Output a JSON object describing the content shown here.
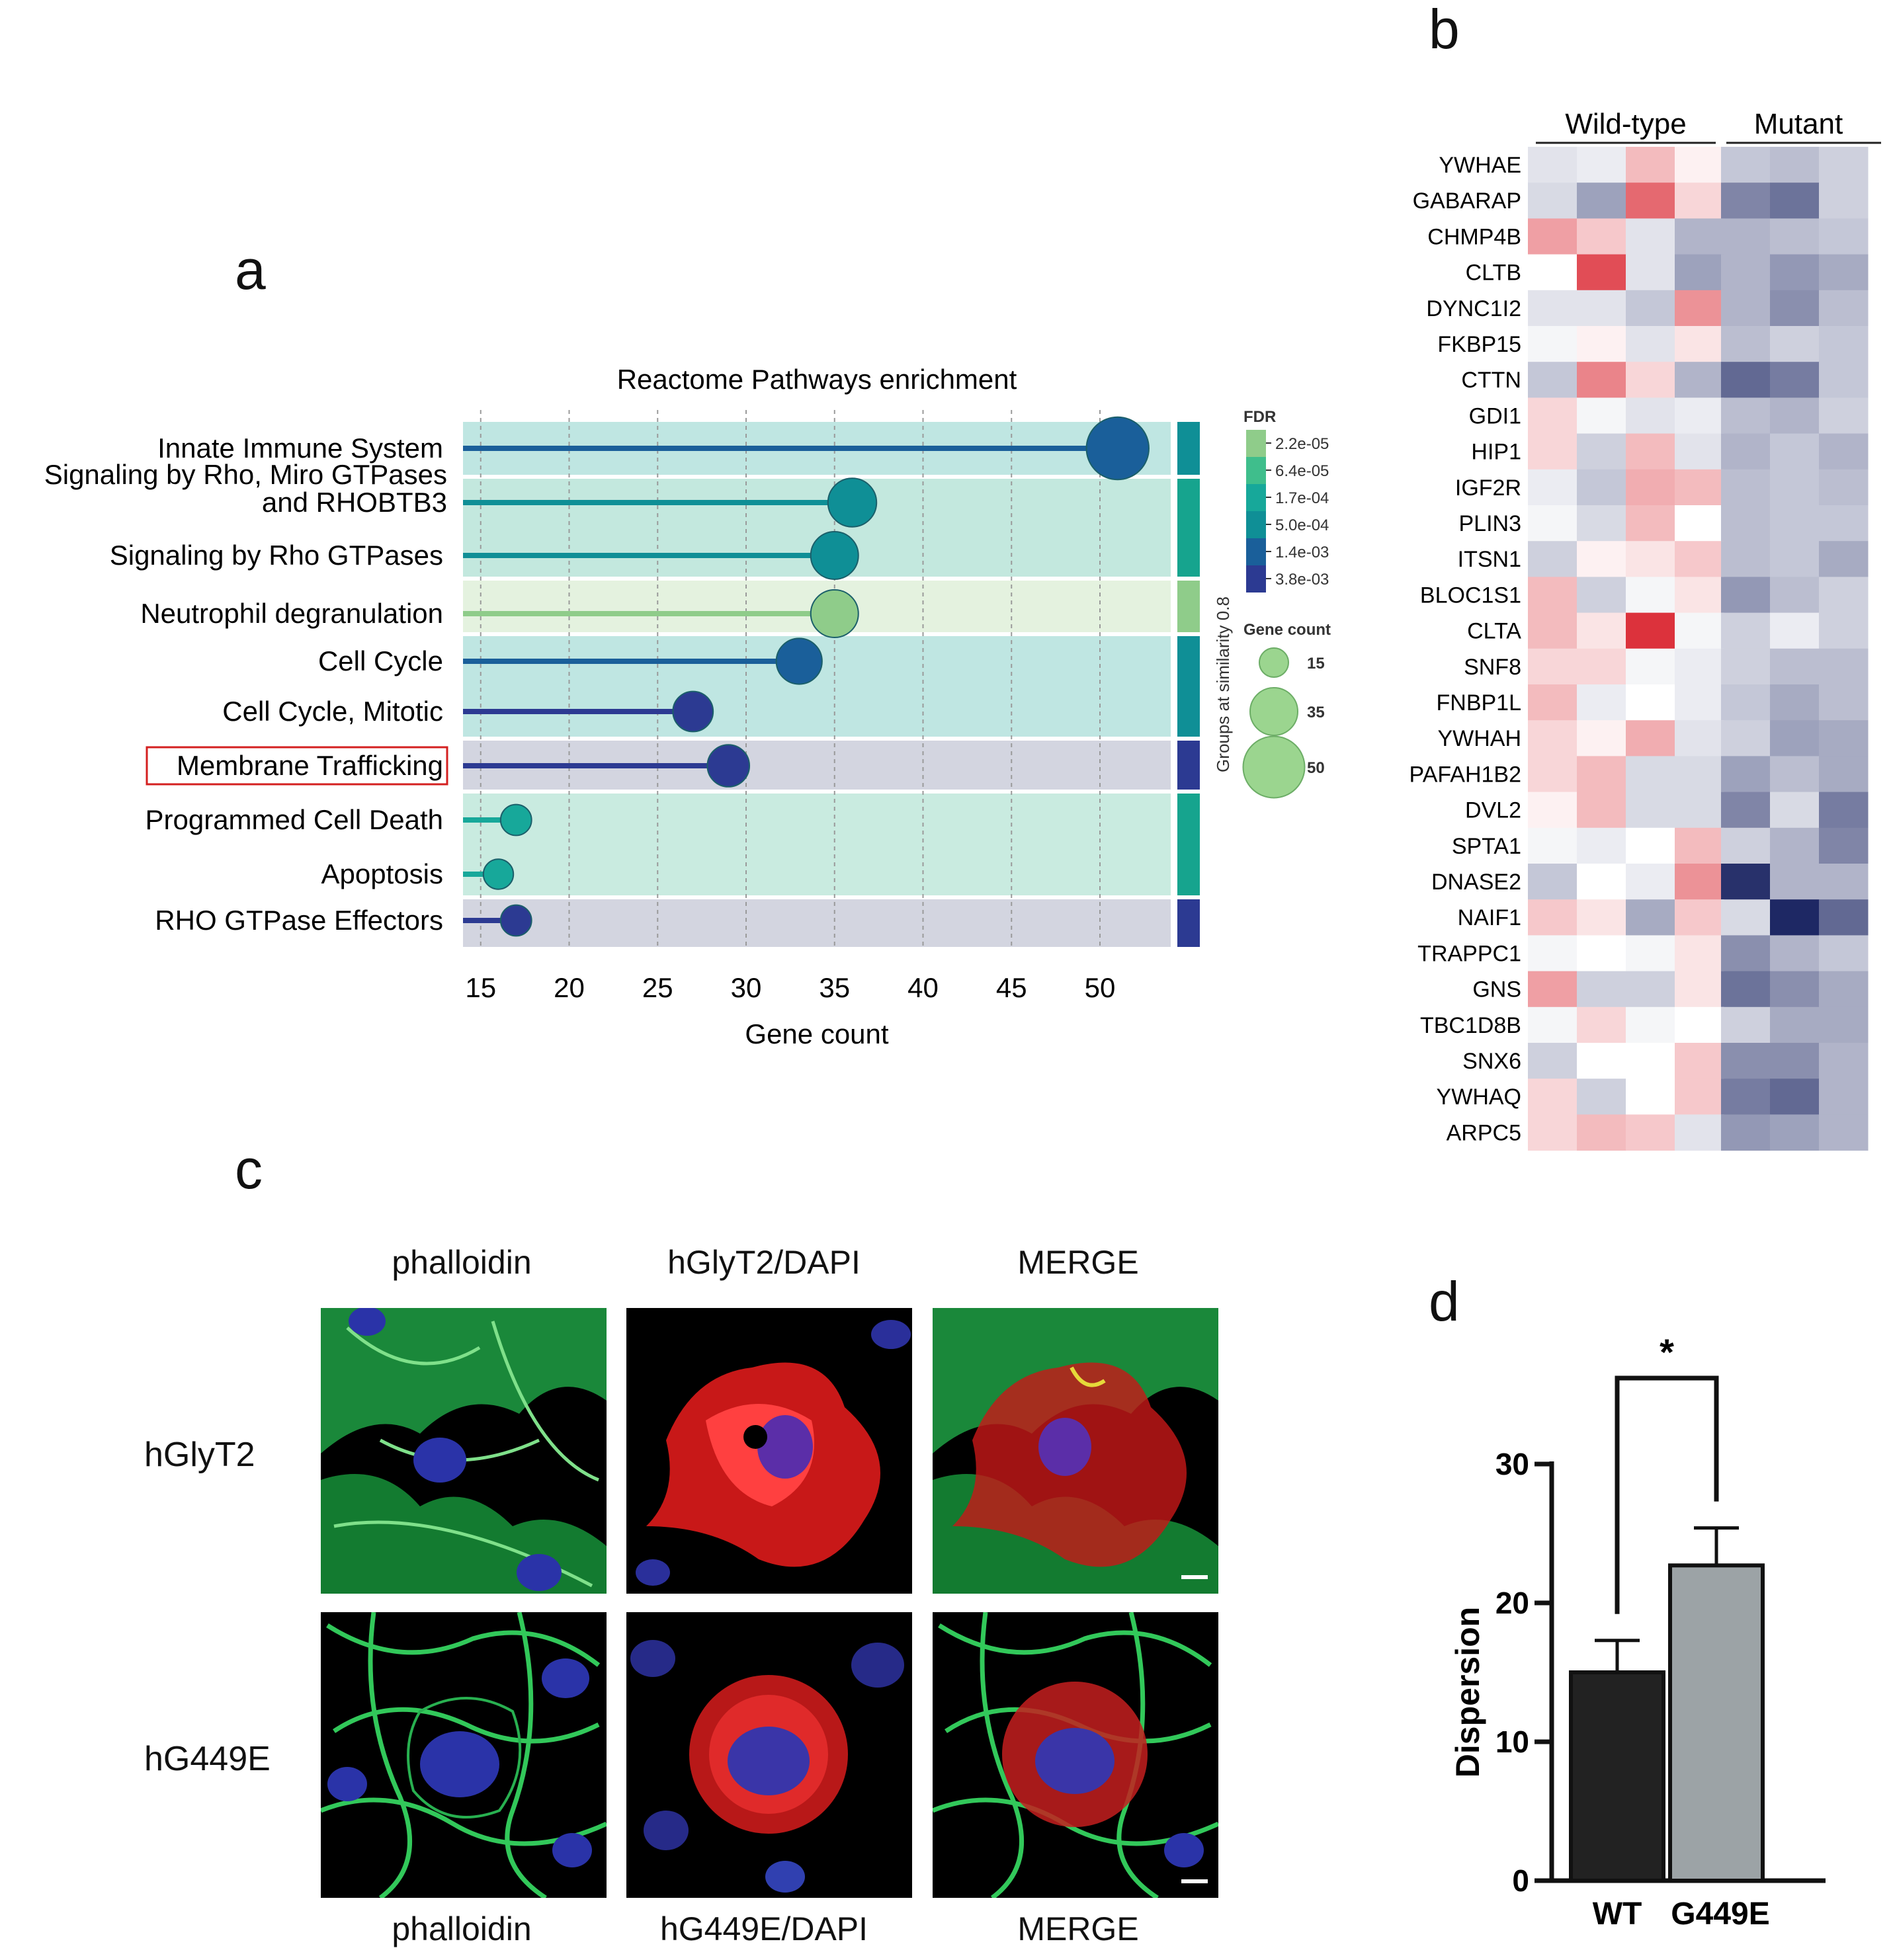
{
  "panel_letters": {
    "a": "a",
    "b": "b",
    "c": "c",
    "d": "d"
  },
  "chart_data": [
    {
      "id": "a",
      "type": "scatter",
      "title": "Reactome Pathways enrichment",
      "xlabel": "Gene count",
      "xlim": [
        14,
        54
      ],
      "xticks": [
        15,
        20,
        25,
        30,
        35,
        40,
        45,
        50
      ],
      "pathways": [
        {
          "name": "Innate Immune System",
          "count": 51,
          "fdr": "1.4e-03",
          "group": 1
        },
        {
          "name": "Signaling by Rho, Miro GTPases",
          "name2": "and RHOBTB3",
          "count": 36,
          "fdr": "5.0e-04",
          "group": 2
        },
        {
          "name": "Signaling by Rho GTPases",
          "count": 35,
          "fdr": "5.0e-04",
          "group": 2
        },
        {
          "name": "Neutrophil degranulation",
          "count": 35,
          "fdr": "2.2e-05",
          "group": 3
        },
        {
          "name": "Cell Cycle",
          "count": 33,
          "fdr": "1.4e-03",
          "group": 4
        },
        {
          "name": "Cell Cycle, Mitotic",
          "count": 27,
          "fdr": "3.8e-03",
          "group": 4
        },
        {
          "name": "Membrane Trafficking",
          "count": 29,
          "fdr": "3.8e-03",
          "group": 5,
          "highlighted": true
        },
        {
          "name": "Programmed Cell Death",
          "count": 17,
          "fdr": "1.7e-04",
          "group": 6
        },
        {
          "name": "Apoptosis",
          "count": 16,
          "fdr": "1.7e-04",
          "group": 6
        },
        {
          "name": "RHO GTPase Effectors",
          "count": 17,
          "fdr": "3.8e-03",
          "group": 7
        }
      ],
      "fdr_legend": {
        "title": "FDR",
        "levels": [
          "2.2e-05",
          "6.4e-05",
          "1.7e-04",
          "5.0e-04",
          "1.4e-03",
          "3.8e-03"
        ],
        "colors": [
          "#8fcc8a",
          "#3fbe8c",
          "#17a89a",
          "#0f8f96",
          "#1a5f9a",
          "#2c3a92"
        ]
      },
      "size_legend": {
        "title": "Gene count",
        "values": [
          15,
          35,
          50
        ]
      },
      "group_label": "Groups at similarity 0.8",
      "group_colors": [
        "#0f8f96",
        "#16a48e",
        "#8fcc8a",
        "#0f8f96",
        "#2c3a92",
        "#16a48e",
        "#2c3a92"
      ]
    },
    {
      "id": "b",
      "type": "heatmap",
      "column_groups": [
        {
          "label": "Wild-type",
          "n": 4
        },
        {
          "label": "Mutant",
          "n": 3
        }
      ],
      "genes": [
        "YWHAE",
        "GABARAP",
        "CHMP4B",
        "CLTB",
        "DYNC1I2",
        "FKBP15",
        "CTTN",
        "GDI1",
        "HIP1",
        "IGF2R",
        "PLIN3",
        "ITSN1",
        "BLOC1S1",
        "CLTA",
        "SNF8",
        "FNBP1L",
        "YWHAH",
        "PAFAH1B2",
        "DVL2",
        "SPTA1",
        "DNASE2",
        "NAIF1",
        "TRAPPC1",
        "GNS",
        "TBC1D8B",
        "SNX6",
        "YWHAQ",
        "ARPC5"
      ],
      "values": [
        [
          -0.3,
          -0.2,
          0.5,
          0.1,
          -0.6,
          -0.7,
          -0.5
        ],
        [
          -0.4,
          -1.0,
          1.1,
          0.3,
          -1.3,
          -1.5,
          -0.5
        ],
        [
          0.7,
          0.4,
          -0.3,
          -0.8,
          -0.8,
          -0.7,
          -0.6
        ],
        [
          0.0,
          1.3,
          -0.3,
          -1.0,
          -0.8,
          -1.1,
          -0.9
        ],
        [
          -0.3,
          -0.3,
          -0.6,
          0.8,
          -0.8,
          -1.2,
          -0.7
        ],
        [
          -0.1,
          0.1,
          -0.3,
          0.2,
          -0.7,
          -0.5,
          -0.6
        ],
        [
          -0.6,
          0.9,
          0.3,
          -0.8,
          -1.6,
          -1.4,
          -0.6
        ],
        [
          0.3,
          -0.1,
          -0.3,
          -0.2,
          -0.7,
          -0.8,
          -0.5
        ],
        [
          0.3,
          -0.5,
          0.5,
          -0.3,
          -0.8,
          -0.6,
          -0.8
        ],
        [
          -0.2,
          -0.6,
          0.6,
          0.5,
          -0.7,
          -0.6,
          -0.7
        ],
        [
          -0.1,
          -0.4,
          0.5,
          0.0,
          -0.7,
          -0.6,
          -0.6
        ],
        [
          -0.5,
          0.1,
          0.2,
          0.4,
          -0.7,
          -0.6,
          -0.9
        ],
        [
          0.5,
          -0.5,
          -0.1,
          0.2,
          -1.1,
          -0.7,
          -0.5
        ],
        [
          0.5,
          0.2,
          1.5,
          -0.1,
          -0.5,
          -0.2,
          -0.5
        ],
        [
          0.3,
          0.3,
          -0.1,
          -0.2,
          -0.5,
          -0.7,
          -0.7
        ],
        [
          0.5,
          -0.2,
          0.0,
          -0.2,
          -0.6,
          -0.9,
          -0.7
        ],
        [
          0.3,
          0.1,
          0.6,
          -0.3,
          -0.5,
          -1.0,
          -0.9
        ],
        [
          0.3,
          0.5,
          -0.4,
          -0.4,
          -1.0,
          -0.7,
          -0.9
        ],
        [
          0.1,
          0.5,
          -0.4,
          -0.4,
          -1.3,
          -0.4,
          -1.4
        ],
        [
          -0.1,
          -0.2,
          0.0,
          0.5,
          -0.5,
          -0.8,
          -1.3
        ],
        [
          -0.6,
          0.0,
          -0.2,
          0.8,
          -2.2,
          -0.8,
          -0.8
        ],
        [
          0.4,
          0.2,
          -0.9,
          0.4,
          -0.4,
          -2.3,
          -1.6
        ],
        [
          -0.1,
          0.0,
          -0.1,
          0.2,
          -1.2,
          -0.8,
          -0.6
        ],
        [
          0.7,
          -0.5,
          -0.5,
          0.2,
          -1.5,
          -1.2,
          -0.9
        ],
        [
          -0.1,
          0.3,
          -0.1,
          0.0,
          -0.5,
          -0.9,
          -0.9
        ],
        [
          -0.5,
          0.0,
          0.0,
          0.4,
          -1.2,
          -1.2,
          -0.8
        ],
        [
          0.3,
          -0.5,
          0.0,
          0.4,
          -1.4,
          -1.6,
          -0.8
        ],
        [
          0.3,
          0.5,
          0.4,
          -0.3,
          -1.1,
          -1.0,
          -0.8
        ]
      ]
    },
    {
      "id": "d",
      "type": "bar",
      "categories": [
        "WT",
        "G449E"
      ],
      "values": [
        15.0,
        22.7
      ],
      "errors": [
        2.3,
        2.7
      ],
      "colors": [
        "#222222",
        "#9ca3a6"
      ],
      "ylabel": "Dispersion",
      "ylim": [
        0,
        30
      ],
      "yticks": [
        0,
        10,
        20,
        30
      ],
      "significance": "*"
    }
  ],
  "micrographs": {
    "column_labels_top": [
      "phalloidin",
      "hGlyT2/DAPI",
      "MERGE"
    ],
    "column_labels_bottom": [
      "phalloidin",
      "hG449E/DAPI",
      "MERGE"
    ],
    "row_labels": [
      "hGlyT2",
      "hG449E"
    ]
  }
}
